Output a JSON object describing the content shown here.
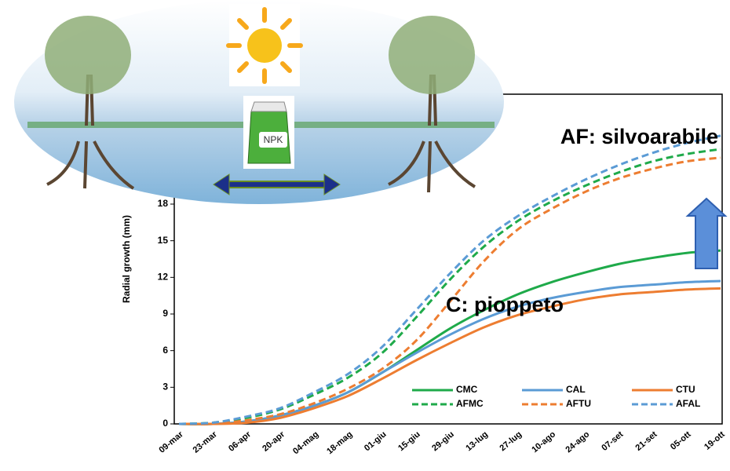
{
  "chart_data": {
    "type": "line",
    "y_label": "Radial growth (mm)",
    "annotations": [
      "AF: silvoarabile",
      "C: pioppeto"
    ],
    "categories": [
      "09-mar",
      "23-mar",
      "06-apr",
      "20-apr",
      "04-mag",
      "18-mag",
      "01-giu",
      "15-giu",
      "29-giu",
      "13-lug",
      "27-lug",
      "10-ago",
      "24-ago",
      "07-set",
      "21-set",
      "05-ott",
      "19-ott"
    ],
    "ylim": [
      0,
      27
    ],
    "yticks": [
      0,
      3,
      6,
      9,
      12,
      15,
      18
    ],
    "grid": false,
    "legend": "bottom-right",
    "series": [
      {
        "name": "CMC",
        "color": "#1faa4a",
        "style": "solid",
        "values": [
          0,
          0,
          0.2,
          0.7,
          1.5,
          2.6,
          4.2,
          6,
          7.8,
          9.3,
          10.6,
          11.6,
          12.4,
          13.1,
          13.6,
          14,
          14.2
        ]
      },
      {
        "name": "CAL",
        "color": "#5b9bd5",
        "style": "solid",
        "values": [
          0,
          0,
          0.2,
          0.7,
          1.5,
          2.6,
          4.2,
          5.8,
          7.3,
          8.6,
          9.6,
          10.3,
          10.8,
          11.2,
          11.4,
          11.6,
          11.7
        ]
      },
      {
        "name": "CTU",
        "color": "#ed7d31",
        "style": "solid",
        "values": [
          0,
          0,
          0.1,
          0.5,
          1.3,
          2.3,
          3.7,
          5.2,
          6.6,
          7.9,
          8.9,
          9.6,
          10.2,
          10.6,
          10.8,
          11,
          11.1
        ]
      },
      {
        "name": "AFMC",
        "color": "#1faa4a",
        "style": "dashed",
        "values": [
          0,
          0.1,
          0.5,
          1.2,
          2.4,
          3.8,
          5.8,
          8.7,
          11.8,
          14.5,
          16.6,
          18.2,
          19.5,
          20.6,
          21.5,
          22.1,
          22.5
        ]
      },
      {
        "name": "AFTU",
        "color": "#ed7d31",
        "style": "dashed",
        "values": [
          0,
          0,
          0.3,
          0.8,
          1.7,
          2.9,
          4.5,
          6.8,
          10,
          13.3,
          15.9,
          17.6,
          19,
          20.1,
          20.9,
          21.5,
          21.8
        ]
      },
      {
        "name": "AFAL",
        "color": "#5b9bd5",
        "style": "dashed",
        "values": [
          0,
          0.1,
          0.6,
          1.3,
          2.6,
          4.1,
          6.3,
          9.3,
          12.3,
          15,
          17,
          18.6,
          20,
          21.2,
          22.2,
          23,
          23.6
        ]
      }
    ]
  },
  "illustration": {
    "bag_label": "NPK"
  }
}
